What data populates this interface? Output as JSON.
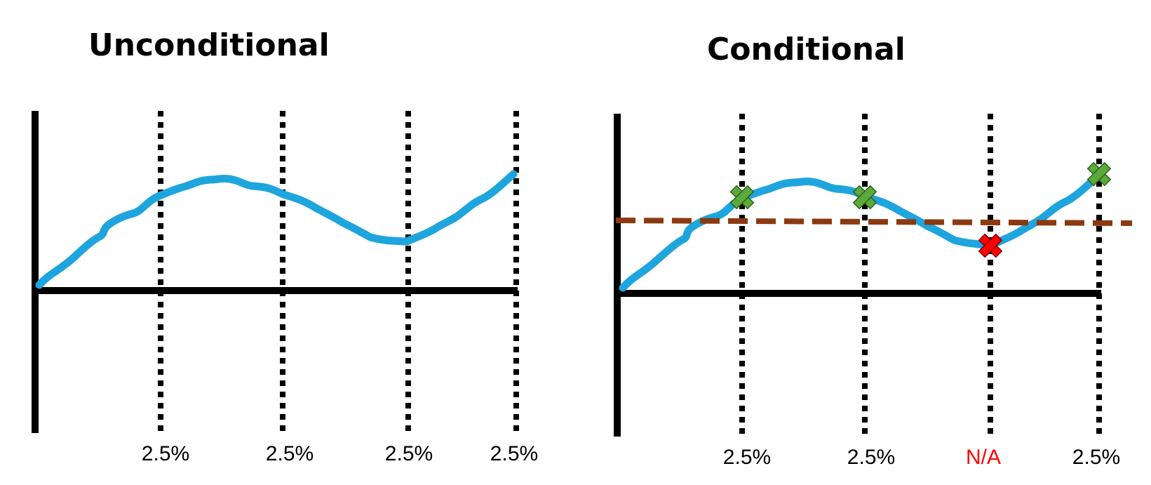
{
  "colors": {
    "curve": "#1ea5de",
    "axis": "#000000",
    "guide": "#000000",
    "threshold": "#8b3a10",
    "pass_marker": "#5aab3a",
    "fail_marker": "#ff0000",
    "na_label": "#ff0000"
  },
  "panels": [
    {
      "title": "Unconditional",
      "guide_labels": [
        "2.5%",
        "2.5%",
        "2.5%",
        "2.5%"
      ],
      "has_threshold": false,
      "markers": []
    },
    {
      "title": "Conditional",
      "guide_labels": [
        "2.5%",
        "2.5%",
        "N/A",
        "2.5%"
      ],
      "has_threshold": true,
      "markers": [
        "pass",
        "pass",
        "fail",
        "pass"
      ]
    }
  ]
}
